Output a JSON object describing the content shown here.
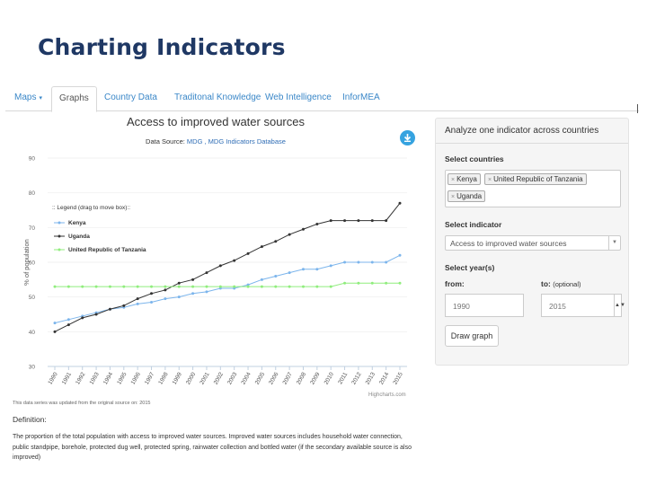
{
  "slide": {
    "title": "Charting Indicators"
  },
  "nav": {
    "tabs": [
      {
        "label": "Maps",
        "caret": "▾"
      },
      {
        "label": "Graphs"
      },
      {
        "label": "Country Data"
      },
      {
        "label": "Traditonal Knowledge"
      },
      {
        "label": "Web Intelligence"
      },
      {
        "label": "InforMEA"
      }
    ]
  },
  "chart": {
    "title": "Access to improved water sources",
    "subtitle_prefix": "Data Source: ",
    "subtitle_link": "MDG , MDG Indicators Database",
    "credits": "Highcharts.com",
    "download_icon": "download-icon"
  },
  "chart_data": {
    "type": "line",
    "title": "Access to improved water sources",
    "xlabel": "",
    "ylabel": "% of population",
    "ylim": [
      30,
      90
    ],
    "yticks": [
      30,
      40,
      50,
      60,
      70,
      80,
      90
    ],
    "legend_title": ":: Legend (drag to move box)::",
    "x": [
      "1990",
      "1991",
      "1992",
      "1993",
      "1994",
      "1995",
      "1996",
      "1997",
      "1998",
      "1999",
      "2000",
      "2001",
      "2002",
      "2003",
      "2004",
      "2005",
      "2006",
      "2007",
      "2008",
      "2009",
      "2010",
      "2011",
      "2012",
      "2013",
      "2014",
      "2015"
    ],
    "series": [
      {
        "name": "Kenya",
        "color": "#7cb5ec",
        "values": [
          42.5,
          43.5,
          44.5,
          45.5,
          46.5,
          47,
          48,
          48.5,
          49.5,
          50,
          51,
          51.5,
          52.5,
          52.5,
          53.5,
          55,
          56,
          57,
          58,
          58,
          59,
          60,
          60,
          60,
          60,
          62
        ]
      },
      {
        "name": "Uganda",
        "color": "#333333",
        "values": [
          40,
          42,
          44,
          45,
          46.5,
          47.5,
          49.5,
          51,
          52,
          54,
          55,
          57,
          59,
          60.5,
          62.5,
          64.5,
          66,
          68,
          69.5,
          71,
          72,
          72,
          72,
          72,
          72,
          77
        ]
      },
      {
        "name": "United Republic of Tanzania",
        "color": "#90ed7d",
        "values": [
          53,
          53,
          53,
          53,
          53,
          53,
          53,
          53,
          53,
          53,
          53,
          53,
          53,
          53,
          53,
          53,
          53,
          53,
          53,
          53,
          53,
          54,
          54,
          54,
          54,
          54
        ]
      }
    ]
  },
  "notes": {
    "update": "This data series was updated from the original source on: 2015",
    "definition_title": "Definition:",
    "definition_text": "The proportion of the total population with access to improved water sources. Improved water sources includes household water connection, public standpipe, borehole, protected dug well, protected spring, rainwater collection and bottled water (if the secondary available source is also improved)"
  },
  "panel": {
    "header": "Analyze one indicator across countries",
    "countries_label": "Select countries",
    "countries": [
      "Kenya",
      "United Republic of Tanzania",
      "Uganda"
    ],
    "indicator_label": "Select indicator",
    "indicator_value": "Access to improved water sources",
    "years_label": "Select year(s)",
    "from_label": "from:",
    "from_value": "1990",
    "to_label": "to:",
    "to_optional": "(optional)",
    "to_value": "2015",
    "button": "Draw graph"
  }
}
